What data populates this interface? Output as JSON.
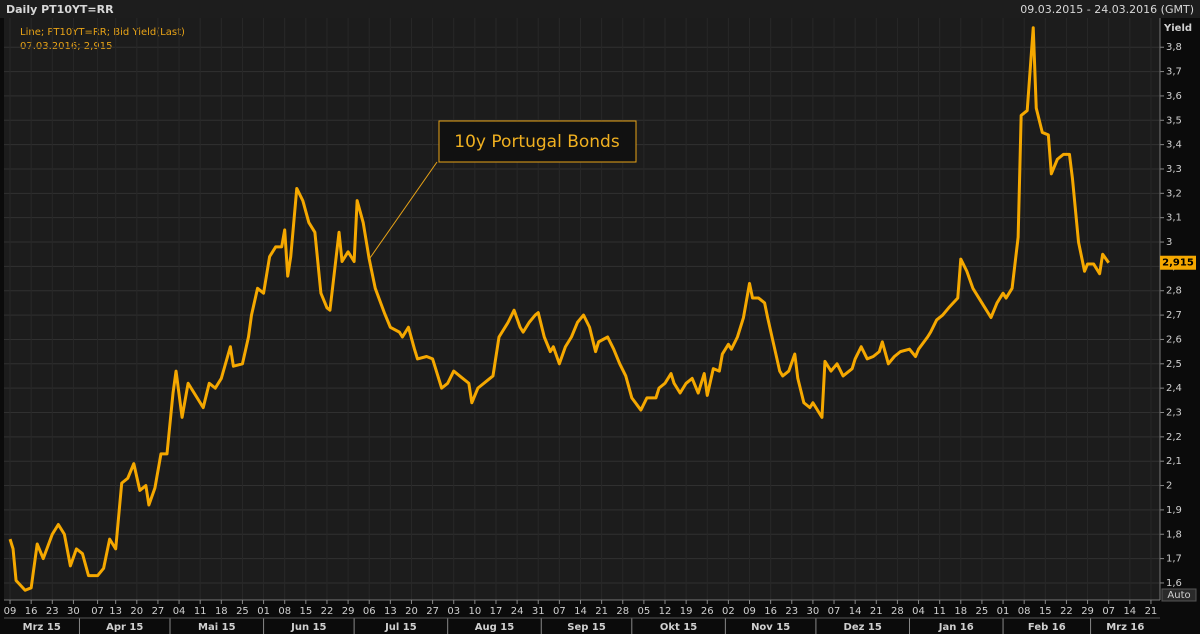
{
  "chart_data": {
    "type": "line",
    "title": "Daily PT10YT=RR",
    "subtitle": "09.03.2015 - 24.03.2016 (GMT)",
    "y_label": "Yield",
    "legend_detail": "07.03.2016; 2,915",
    "annotation": "10y Portugal Bonds",
    "last_label": {
      "value": 2.915,
      "label": "2,915"
    },
    "auto_button": "Auto",
    "grid": true,
    "xlim": [
      "2015-03-07",
      "2016-03-24"
    ],
    "ylim": [
      1.53,
      3.92
    ],
    "yticks": [
      {
        "value": 1.6,
        "label": "1,6"
      },
      {
        "value": 1.7,
        "label": "1,7"
      },
      {
        "value": 1.8,
        "label": "1,8"
      },
      {
        "value": 1.9,
        "label": "1,9"
      },
      2,
      {
        "value": 2.1,
        "label": "2,1"
      },
      {
        "value": 2.2,
        "label": "2,2"
      },
      {
        "value": 2.3,
        "label": "2,3"
      },
      {
        "value": 2.4,
        "label": "2,4"
      },
      {
        "value": 2.5,
        "label": "2,5"
      },
      {
        "value": 2.6,
        "label": "2,6"
      },
      {
        "value": 2.7,
        "label": "2,7"
      },
      {
        "value": 2.8,
        "label": "2,8"
      },
      {
        "value": 2.9,
        "label": "2,9"
      },
      3,
      {
        "value": 3.1,
        "label": "3,1"
      },
      {
        "value": 3.2,
        "label": "3,2"
      },
      {
        "value": 3.3,
        "label": "3,3"
      },
      {
        "value": 3.4,
        "label": "3,4"
      },
      {
        "value": 3.5,
        "label": "3,5"
      },
      {
        "value": 3.6,
        "label": "3,6"
      },
      {
        "value": 3.7,
        "label": "3,7"
      },
      {
        "value": 3.8,
        "label": "3,8"
      }
    ],
    "xticks": [
      {
        "value": "2015-03-09",
        "label": "09"
      },
      {
        "value": "2015-03-16",
        "label": "16"
      },
      {
        "value": "2015-03-23",
        "label": "23"
      },
      {
        "value": "2015-03-30",
        "label": "30"
      },
      {
        "value": "2015-04-07",
        "label": "07"
      },
      {
        "value": "2015-04-13",
        "label": "13"
      },
      {
        "value": "2015-04-20",
        "label": "20"
      },
      {
        "value": "2015-04-27",
        "label": "27"
      },
      {
        "value": "2015-05-04",
        "label": "04"
      },
      {
        "value": "2015-05-11",
        "label": "11"
      },
      {
        "value": "2015-05-18",
        "label": "18"
      },
      {
        "value": "2015-05-25",
        "label": "25"
      },
      {
        "value": "2015-06-01",
        "label": "01"
      },
      {
        "value": "2015-06-08",
        "label": "08"
      },
      {
        "value": "2015-06-15",
        "label": "15"
      },
      {
        "value": "2015-06-22",
        "label": "22"
      },
      {
        "value": "2015-06-29",
        "label": "29"
      },
      {
        "value": "2015-07-06",
        "label": "06"
      },
      {
        "value": "2015-07-13",
        "label": "13"
      },
      {
        "value": "2015-07-20",
        "label": "20"
      },
      {
        "value": "2015-07-27",
        "label": "27"
      },
      {
        "value": "2015-08-03",
        "label": "03"
      },
      {
        "value": "2015-08-10",
        "label": "10"
      },
      {
        "value": "2015-08-17",
        "label": "17"
      },
      {
        "value": "2015-08-24",
        "label": "24"
      },
      {
        "value": "2015-08-31",
        "label": "31"
      },
      {
        "value": "2015-09-07",
        "label": "07"
      },
      {
        "value": "2015-09-14",
        "label": "14"
      },
      {
        "value": "2015-09-21",
        "label": "21"
      },
      {
        "value": "2015-09-28",
        "label": "28"
      },
      {
        "value": "2015-10-05",
        "label": "05"
      },
      {
        "value": "2015-10-12",
        "label": "12"
      },
      {
        "value": "2015-10-19",
        "label": "19"
      },
      {
        "value": "2015-10-26",
        "label": "26"
      },
      {
        "value": "2015-11-02",
        "label": "02"
      },
      {
        "value": "2015-11-09",
        "label": "09"
      },
      {
        "value": "2015-11-16",
        "label": "16"
      },
      {
        "value": "2015-11-23",
        "label": "23"
      },
      {
        "value": "2015-11-30",
        "label": "30"
      },
      {
        "value": "2015-12-07",
        "label": "07"
      },
      {
        "value": "2015-12-14",
        "label": "14"
      },
      {
        "value": "2015-12-21",
        "label": "21"
      },
      {
        "value": "2015-12-28",
        "label": "28"
      },
      {
        "value": "2016-01-04",
        "label": "04"
      },
      {
        "value": "2016-01-11",
        "label": "11"
      },
      {
        "value": "2016-01-18",
        "label": "18"
      },
      {
        "value": "2016-01-25",
        "label": "25"
      },
      {
        "value": "2016-02-01",
        "label": "01"
      },
      {
        "value": "2016-02-08",
        "label": "08"
      },
      {
        "value": "2016-02-15",
        "label": "15"
      },
      {
        "value": "2016-02-22",
        "label": "22"
      },
      {
        "value": "2016-02-29",
        "label": "29"
      },
      {
        "value": "2016-03-07",
        "label": "07"
      },
      {
        "value": "2016-03-14",
        "label": "14"
      },
      {
        "value": "2016-03-21",
        "label": "21"
      }
    ],
    "month_labels": [
      {
        "value": "2015-03-01",
        "label": "Mrz 15"
      },
      {
        "value": "2015-04-01",
        "label": "Apr 15"
      },
      {
        "value": "2015-05-01",
        "label": "Mai 15"
      },
      {
        "value": "2015-06-01",
        "label": "Jun 15"
      },
      {
        "value": "2015-07-01",
        "label": "Jul 15"
      },
      {
        "value": "2015-08-01",
        "label": "Aug 15"
      },
      {
        "value": "2015-09-01",
        "label": "Sep 15"
      },
      {
        "value": "2015-10-01",
        "label": "Okt 15"
      },
      {
        "value": "2015-11-01",
        "label": "Nov 15"
      },
      {
        "value": "2015-12-01",
        "label": "Dez 15"
      },
      {
        "value": "2016-01-01",
        "label": "Jan 16"
      },
      {
        "value": "2016-02-01",
        "label": "Feb 16"
      },
      {
        "value": "2016-03-01",
        "label": "Mrz 16"
      }
    ],
    "x": [
      "2015-03-09",
      "2015-03-10",
      "2015-03-11",
      "2015-03-14",
      "2015-03-16",
      "2015-03-18",
      "2015-03-20",
      "2015-03-23",
      "2015-03-25",
      "2015-03-27",
      "2015-03-29",
      "2015-03-31",
      "2015-04-02",
      "2015-04-04",
      "2015-04-07",
      "2015-04-09",
      "2015-04-11",
      "2015-04-13",
      "2015-04-15",
      "2015-04-17",
      "2015-04-19",
      "2015-04-21",
      "2015-04-23",
      "2015-04-24",
      "2015-04-26",
      "2015-04-28",
      "2015-04-30",
      "2015-05-02",
      "2015-05-03",
      "2015-05-05",
      "2015-05-07",
      "2015-05-08",
      "2015-05-10",
      "2015-05-12",
      "2015-05-14",
      "2015-05-16",
      "2015-05-18",
      "2015-05-21",
      "2015-05-22",
      "2015-05-25",
      "2015-05-27",
      "2015-05-28",
      "2015-05-30",
      "2015-06-01",
      "2015-06-03",
      "2015-06-05",
      "2015-06-07",
      "2015-06-08",
      "2015-06-09",
      "2015-06-10",
      "2015-06-12",
      "2015-06-14",
      "2015-06-16",
      "2015-06-18",
      "2015-06-20",
      "2015-06-22",
      "2015-06-23",
      "2015-06-26",
      "2015-06-27",
      "2015-06-29",
      "2015-07-01",
      "2015-07-02",
      "2015-07-04",
      "2015-07-06",
      "2015-07-08",
      "2015-07-11",
      "2015-07-13",
      "2015-07-16",
      "2015-07-17",
      "2015-07-19",
      "2015-07-21",
      "2015-07-22",
      "2015-07-25",
      "2015-07-27",
      "2015-07-30",
      "2015-08-01",
      "2015-08-03",
      "2015-08-06",
      "2015-08-08",
      "2015-08-09",
      "2015-08-11",
      "2015-08-14",
      "2015-08-16",
      "2015-08-18",
      "2015-08-21",
      "2015-08-23",
      "2015-08-25",
      "2015-08-26",
      "2015-08-28",
      "2015-08-30",
      "2015-08-31",
      "2015-09-02",
      "2015-09-04",
      "2015-09-05",
      "2015-09-07",
      "2015-09-09",
      "2015-09-11",
      "2015-09-13",
      "2015-09-15",
      "2015-09-17",
      "2015-09-19",
      "2015-09-20",
      "2015-09-23",
      "2015-09-25",
      "2015-09-27",
      "2015-09-29",
      "2015-10-01",
      "2015-10-04",
      "2015-10-06",
      "2015-10-09",
      "2015-10-10",
      "2015-10-12",
      "2015-10-14",
      "2015-10-15",
      "2015-10-17",
      "2015-10-19",
      "2015-10-21",
      "2015-10-23",
      "2015-10-25",
      "2015-10-26",
      "2015-10-28",
      "2015-10-30",
      "2015-10-31",
      "2015-11-02",
      "2015-11-03",
      "2015-11-05",
      "2015-11-07",
      "2015-11-09",
      "2015-11-10",
      "2015-11-12",
      "2015-11-14",
      "2015-11-15",
      "2015-11-17",
      "2015-11-19",
      "2015-11-20",
      "2015-11-22",
      "2015-11-24",
      "2015-11-25",
      "2015-11-27",
      "2015-11-29",
      "2015-11-30",
      "2015-12-03",
      "2015-12-04",
      "2015-12-06",
      "2015-12-08",
      "2015-12-10",
      "2015-12-13",
      "2015-12-14",
      "2015-12-16",
      "2015-12-18",
      "2015-12-20",
      "2015-12-22",
      "2015-12-23",
      "2015-12-25",
      "2015-12-27",
      "2015-12-29",
      "2016-01-01",
      "2016-01-03",
      "2016-01-04",
      "2016-01-07",
      "2016-01-08",
      "2016-01-10",
      "2016-01-12",
      "2016-01-14",
      "2016-01-17",
      "2016-01-18",
      "2016-01-20",
      "2016-01-22",
      "2016-01-24",
      "2016-01-26",
      "2016-01-28",
      "2016-01-30",
      "2016-02-01",
      "2016-02-02",
      "2016-02-04",
      "2016-02-06",
      "2016-02-07",
      "2016-02-09",
      "2016-02-11",
      "2016-02-12",
      "2016-02-14",
      "2016-02-16",
      "2016-02-17",
      "2016-02-19",
      "2016-02-21",
      "2016-02-23",
      "2016-02-24",
      "2016-02-26",
      "2016-02-28",
      "2016-02-29",
      "2016-03-02",
      "2016-03-04",
      "2016-03-05",
      "2016-03-07"
    ],
    "series": [
      {
        "name": "Line; PT10YT=RR; Bid Yield(Last)",
        "color": "#f5a800",
        "values": [
          1.78,
          1.74,
          1.61,
          1.57,
          1.58,
          1.76,
          1.7,
          1.8,
          1.84,
          1.8,
          1.67,
          1.74,
          1.72,
          1.63,
          1.63,
          1.66,
          1.78,
          1.74,
          2.01,
          2.03,
          2.09,
          1.98,
          2.0,
          1.92,
          1.99,
          2.13,
          2.13,
          2.38,
          2.47,
          2.28,
          2.42,
          2.4,
          2.36,
          2.32,
          2.42,
          2.4,
          2.44,
          2.57,
          2.49,
          2.5,
          2.61,
          2.7,
          2.81,
          2.79,
          2.94,
          2.98,
          2.98,
          3.05,
          2.86,
          2.94,
          3.22,
          3.17,
          3.08,
          3.04,
          2.79,
          2.73,
          2.72,
          3.04,
          2.92,
          2.96,
          2.92,
          3.17,
          3.08,
          2.93,
          2.81,
          2.71,
          2.65,
          2.63,
          2.61,
          2.65,
          2.56,
          2.52,
          2.53,
          2.52,
          2.4,
          2.42,
          2.47,
          2.44,
          2.42,
          2.34,
          2.4,
          2.43,
          2.45,
          2.61,
          2.67,
          2.72,
          2.65,
          2.63,
          2.67,
          2.7,
          2.71,
          2.61,
          2.55,
          2.57,
          2.5,
          2.57,
          2.61,
          2.67,
          2.7,
          2.65,
          2.55,
          2.59,
          2.61,
          2.56,
          2.5,
          2.45,
          2.36,
          2.31,
          2.36,
          2.36,
          2.4,
          2.42,
          2.46,
          2.42,
          2.38,
          2.42,
          2.44,
          2.38,
          2.46,
          2.37,
          2.48,
          2.47,
          2.54,
          2.58,
          2.56,
          2.61,
          2.69,
          2.83,
          2.77,
          2.77,
          2.75,
          2.69,
          2.58,
          2.47,
          2.45,
          2.47,
          2.54,
          2.44,
          2.34,
          2.32,
          2.34,
          2.28,
          2.51,
          2.47,
          2.5,
          2.45,
          2.48,
          2.52,
          2.57,
          2.52,
          2.53,
          2.55,
          2.59,
          2.5,
          2.53,
          2.55,
          2.56,
          2.53,
          2.56,
          2.61,
          2.63,
          2.68,
          2.7,
          2.73,
          2.77,
          2.93,
          2.88,
          2.81,
          2.77,
          2.73,
          2.69,
          2.75,
          2.79,
          2.77,
          2.81,
          3.02,
          3.52,
          3.54,
          3.88,
          3.55,
          3.45,
          3.44,
          3.28,
          3.34,
          3.36,
          3.36,
          3.26,
          3.0,
          2.88,
          2.91,
          2.91,
          2.87,
          2.95,
          2.915
        ]
      }
    ]
  }
}
